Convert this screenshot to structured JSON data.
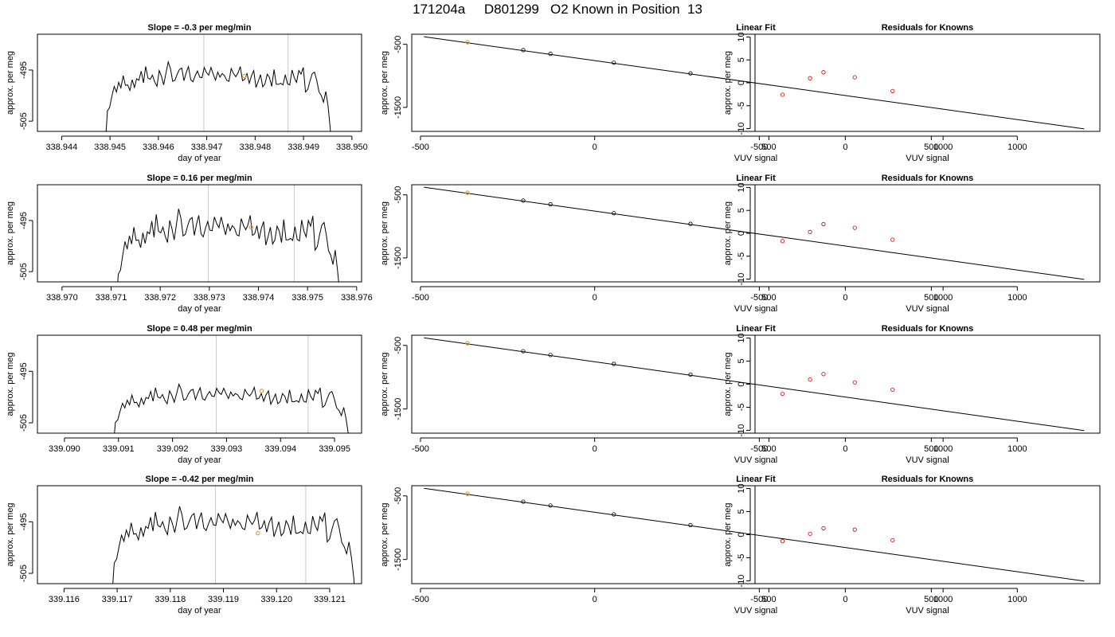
{
  "page": {
    "title": "171204a     D801299   O2 Known in Position  13"
  },
  "colors": {
    "line": "#000000",
    "frame": "#000000",
    "vertical_marker": "#c8c8c8",
    "highlight": "#e8a33d",
    "residual_points": "#cc0000",
    "fit_points": "#000000"
  },
  "chart_data": [
    {
      "type": "line",
      "title": "Slope =  -0.3  per meg/min",
      "xlabel": "day of year",
      "ylabel": "approx. per meg",
      "xlim": [
        338.9435,
        338.9502
      ],
      "ylim": [
        -507.0,
        -488.0
      ],
      "xticks": [
        338.944,
        338.945,
        338.946,
        338.947,
        338.948,
        338.949,
        338.95
      ],
      "xtick_labels": [
        "338.944",
        "338.945",
        "338.946",
        "338.947",
        "338.948",
        "338.949",
        "338.950"
      ],
      "yticks": [
        -495,
        -505
      ],
      "ytick_labels": [
        "-495",
        "-505"
      ],
      "vlines": [
        338.94694,
        338.94868
      ],
      "highlight_point": [
        338.94778,
        -496.2
      ],
      "x_start": 338.9449,
      "x_end": 338.9496,
      "series_values": [
        -510.0,
        -503.0,
        -502.3,
        -500.1,
        -498.2,
        -499.3,
        -497.4,
        -498.5,
        -496.1,
        -498.0,
        -497.9,
        -499.0,
        -496.9,
        -498.4,
        -496.7,
        -497.0,
        -495.2,
        -497.5,
        -494.3,
        -496.6,
        -496.8,
        -496.0,
        -497.3,
        -498.2,
        -495.1,
        -496.2,
        -497.9,
        -495.6,
        -493.4,
        -494.7,
        -497.2,
        -497.0,
        -495.8,
        -494.9,
        -494.6,
        -497.1,
        -495.5,
        -494.3,
        -496.9,
        -497.3,
        -496.1,
        -495.2,
        -496.4,
        -496.5,
        -494.5,
        -495.5,
        -496.0,
        -494.5,
        -495.8,
        -497.0,
        -495.4,
        -496.4,
        -495.7,
        -496.1,
        -497.0,
        -497.2,
        -494.7,
        -495.7,
        -496.3,
        -495.6,
        -494.3,
        -497.1,
        -496.8,
        -495.7,
        -497.6,
        -496.1,
        -495.1,
        -498.4,
        -497.2,
        -495.9,
        -498.3,
        -497.7,
        -495.8,
        -496.5,
        -498.2,
        -494.9,
        -497.8,
        -497.8,
        -497.6,
        -497.9,
        -495.9,
        -497.7,
        -497.9,
        -495.0,
        -496.5,
        -497.4,
        -495.1,
        -495.8,
        -494.5,
        -499.3,
        -498.8,
        -497.1,
        -495.7,
        -495.4,
        -497.1,
        -499.3,
        -500.0,
        -501.3,
        -499.2,
        -502.0,
        -506.5,
        -515.0
      ]
    },
    {
      "type": "line",
      "title": "Slope =  0.16  per meg/min",
      "xlabel": "day of year",
      "ylabel": "approx. per meg",
      "xlim": [
        338.9695,
        338.9761
      ],
      "ylim": [
        -507.0,
        -488.0
      ],
      "xticks": [
        338.97,
        338.971,
        338.972,
        338.973,
        338.974,
        338.975,
        338.976
      ],
      "xtick_labels": [
        "338.970",
        "338.971",
        "338.972",
        "338.973",
        "338.974",
        "338.975",
        "338.976"
      ],
      "yticks": [
        -495,
        -505
      ],
      "ytick_labels": [
        "-495",
        "-505"
      ],
      "vlines": [
        338.97298,
        338.97473
      ],
      "highlight_point": [
        338.97385,
        -496.3
      ],
      "x_start": 338.9711,
      "x_end": 338.9757,
      "series_values": [
        -512.0,
        -505.5,
        -504.7,
        -501.8,
        -499.1,
        -500.6,
        -498.0,
        -499.6,
        -496.3,
        -498.9,
        -498.8,
        -500.3,
        -497.4,
        -499.5,
        -497.2,
        -497.6,
        -495.1,
        -498.3,
        -493.8,
        -497.1,
        -497.4,
        -496.3,
        -498.1,
        -499.3,
        -495.0,
        -496.6,
        -498.8,
        -495.8,
        -492.7,
        -494.5,
        -498.0,
        -497.7,
        -496.1,
        -494.8,
        -494.4,
        -497.9,
        -495.7,
        -494.0,
        -497.6,
        -498.2,
        -496.5,
        -495.2,
        -496.9,
        -497.0,
        -494.3,
        -495.6,
        -496.4,
        -494.3,
        -496.1,
        -497.8,
        -495.6,
        -497.0,
        -496.0,
        -496.5,
        -497.8,
        -498.0,
        -494.6,
        -496.0,
        -496.8,
        -495.8,
        -494.0,
        -497.9,
        -497.6,
        -496.0,
        -498.6,
        -496.5,
        -495.2,
        -499.8,
        -498.1,
        -496.3,
        -499.6,
        -498.8,
        -496.1,
        -497.1,
        -499.3,
        -494.8,
        -498.8,
        -498.8,
        -498.5,
        -498.9,
        -496.2,
        -498.7,
        -499.0,
        -494.9,
        -497.1,
        -498.2,
        -495.0,
        -496.1,
        -494.1,
        -500.8,
        -500.1,
        -497.8,
        -495.9,
        -495.4,
        -497.8,
        -500.9,
        -501.8,
        -503.6,
        -500.8,
        -504.6,
        -509.0,
        -516.0
      ]
    },
    {
      "type": "line",
      "title": "Slope =  0.48  per meg/min",
      "xlabel": "day of year",
      "ylabel": "approx. per meg",
      "xlim": [
        339.0895,
        339.0955
      ],
      "ylim": [
        -507.0,
        -488.0
      ],
      "xticks": [
        339.09,
        339.091,
        339.092,
        339.093,
        339.094,
        339.095
      ],
      "xtick_labels": [
        "339.090",
        "339.091",
        "339.092",
        "339.093",
        "339.094",
        "339.095"
      ],
      "yticks": [
        -495,
        -505
      ],
      "ytick_labels": [
        "-495",
        "-505"
      ],
      "vlines": [
        339.09281,
        339.09451
      ],
      "highlight_point": [
        339.09365,
        -498.8
      ],
      "x_start": 339.0909,
      "x_end": 339.0953,
      "series_values": [
        -510.0,
        -504.9,
        -504.4,
        -502.7,
        -501.2,
        -502.1,
        -500.6,
        -501.5,
        -499.6,
        -501.1,
        -501.0,
        -501.9,
        -500.2,
        -501.4,
        -500.1,
        -500.3,
        -498.9,
        -500.8,
        -498.2,
        -500.0,
        -500.2,
        -499.5,
        -500.6,
        -501.3,
        -498.8,
        -499.7,
        -501.0,
        -499.3,
        -497.5,
        -498.6,
        -500.6,
        -500.4,
        -499.4,
        -498.7,
        -498.5,
        -500.5,
        -499.2,
        -498.2,
        -500.3,
        -500.6,
        -499.6,
        -498.9,
        -499.8,
        -499.9,
        -498.3,
        -499.1,
        -499.5,
        -498.3,
        -499.3,
        -500.3,
        -499.0,
        -499.8,
        -499.3,
        -499.6,
        -500.3,
        -500.5,
        -498.5,
        -499.3,
        -499.8,
        -499.2,
        -498.1,
        -500.4,
        -500.2,
        -499.3,
        -500.8,
        -499.6,
        -498.8,
        -501.4,
        -500.5,
        -499.4,
        -501.3,
        -500.9,
        -499.3,
        -499.9,
        -501.2,
        -498.6,
        -500.9,
        -500.9,
        -500.7,
        -501.0,
        -499.4,
        -500.8,
        -501.0,
        -498.6,
        -499.9,
        -500.6,
        -498.7,
        -499.3,
        -498.2,
        -502.0,
        -501.6,
        -500.3,
        -499.2,
        -498.9,
        -500.3,
        -502.1,
        -502.6,
        -503.6,
        -502.0,
        -504.2,
        -507.3,
        -514.0
      ]
    },
    {
      "type": "line",
      "title": "Slope =  -0.42  per meg/min",
      "xlabel": "day of year",
      "ylabel": "approx. per meg",
      "xlim": [
        339.1155,
        339.1216
      ],
      "ylim": [
        -507.0,
        -488.0
      ],
      "xticks": [
        339.116,
        339.117,
        339.118,
        339.119,
        339.12,
        339.121
      ],
      "xtick_labels": [
        "339.116",
        "339.117",
        "339.118",
        "339.119",
        "339.120",
        "339.121"
      ],
      "yticks": [
        -495,
        -505
      ],
      "ytick_labels": [
        "-495",
        "-505"
      ],
      "vlines": [
        339.11885,
        339.12055
      ],
      "highlight_point": [
        339.11965,
        -497.2
      ],
      "x_start": 339.1169,
      "x_end": 339.1215,
      "series_values": [
        -510.0,
        -503.0,
        -502.2,
        -499.8,
        -497.6,
        -498.8,
        -496.6,
        -497.9,
        -495.2,
        -497.4,
        -497.3,
        -498.5,
        -496.1,
        -497.8,
        -495.9,
        -496.3,
        -494.1,
        -496.8,
        -493.1,
        -495.7,
        -496.0,
        -495.0,
        -496.5,
        -497.5,
        -494.0,
        -495.3,
        -497.1,
        -494.6,
        -492.0,
        -493.6,
        -496.5,
        -496.2,
        -494.9,
        -493.8,
        -493.4,
        -496.4,
        -494.6,
        -493.2,
        -496.2,
        -496.7,
        -495.3,
        -494.2,
        -495.6,
        -495.7,
        -493.4,
        -494.5,
        -495.2,
        -493.4,
        -494.9,
        -496.3,
        -494.5,
        -495.7,
        -494.8,
        -495.3,
        -496.3,
        -496.5,
        -493.7,
        -494.8,
        -495.5,
        -494.7,
        -493.1,
        -496.4,
        -496.1,
        -494.8,
        -497.0,
        -495.2,
        -494.1,
        -497.9,
        -496.5,
        -495.0,
        -497.7,
        -497.1,
        -494.8,
        -495.7,
        -497.5,
        -493.8,
        -497.2,
        -497.2,
        -496.9,
        -497.3,
        -495.0,
        -497.1,
        -497.3,
        -493.9,
        -495.7,
        -496.7,
        -494.0,
        -494.9,
        -493.2,
        -498.9,
        -498.3,
        -496.4,
        -494.8,
        -494.4,
        -496.4,
        -499.0,
        -499.8,
        -501.2,
        -498.9,
        -502.0,
        -506.0,
        -515.0
      ]
    },
    {
      "type": "scatter",
      "title": "Linear Fit",
      "xlabel": "VUV signal",
      "ylabel": "approx. per meg",
      "xlim": [
        -525,
        1450
      ],
      "ylim": [
        -1880,
        -340
      ],
      "xticks": [
        -500,
        0,
        500,
        1000
      ],
      "xtick_labels": [
        "-500",
        "0",
        "500",
        "1000"
      ],
      "yticks": [
        -500,
        -1500
      ],
      "ytick_labels": [
        "-500",
        "-1500"
      ],
      "fit_line": {
        "x": [
          -490,
          1405
        ],
        "y": [
          -380,
          -1840
        ]
      },
      "x": [
        -365,
        -205,
        -127,
        55,
        275
      ],
      "y": [
        -467,
        -591,
        -651,
        -791,
        -960
      ],
      "highlight_point": [
        -365,
        -467
      ]
    },
    {
      "type": "scatter",
      "title": "Linear Fit",
      "xlabel": "VUV signal",
      "ylabel": "approx. per meg",
      "xlim": [
        -525,
        1450
      ],
      "ylim": [
        -1880,
        -340
      ],
      "xticks": [
        -500,
        0,
        500,
        1000
      ],
      "xtick_labels": [
        "-500",
        "0",
        "500",
        "1000"
      ],
      "yticks": [
        -500,
        -1500
      ],
      "ytick_labels": [
        "-500",
        "-1500"
      ],
      "fit_line": {
        "x": [
          -490,
          1405
        ],
        "y": [
          -380,
          -1840
        ]
      },
      "x": [
        -365,
        -205,
        -127,
        55,
        275
      ],
      "y": [
        -467,
        -591,
        -651,
        -791,
        -960
      ],
      "highlight_point": [
        -365,
        -467
      ]
    },
    {
      "type": "scatter",
      "title": "Linear Fit",
      "xlabel": "VUV signal",
      "ylabel": "approx. per meg",
      "xlim": [
        -525,
        1450
      ],
      "ylim": [
        -1880,
        -340
      ],
      "xticks": [
        -500,
        0,
        500,
        1000
      ],
      "xtick_labels": [
        "-500",
        "0",
        "500",
        "1000"
      ],
      "yticks": [
        -500,
        -1500
      ],
      "ytick_labels": [
        "-500",
        "-1500"
      ],
      "fit_line": {
        "x": [
          -490,
          1405
        ],
        "y": [
          -380,
          -1840
        ]
      },
      "x": [
        -365,
        -205,
        -127,
        55,
        275
      ],
      "y": [
        -467,
        -591,
        -651,
        -791,
        -960
      ],
      "highlight_point": [
        -365,
        -467
      ]
    },
    {
      "type": "scatter",
      "title": "Linear Fit",
      "xlabel": "VUV signal",
      "ylabel": "approx. per meg",
      "xlim": [
        -525,
        1450
      ],
      "ylim": [
        -1880,
        -340
      ],
      "xticks": [
        -500,
        0,
        500,
        1000
      ],
      "xtick_labels": [
        "-500",
        "0",
        "500",
        "1000"
      ],
      "yticks": [
        -500,
        -1500
      ],
      "ytick_labels": [
        "-500",
        "-1500"
      ],
      "fit_line": {
        "x": [
          -490,
          1405
        ],
        "y": [
          -380,
          -1840
        ]
      },
      "x": [
        -365,
        -205,
        -127,
        55,
        275
      ],
      "y": [
        -467,
        -591,
        -651,
        -791,
        -960
      ],
      "highlight_point": [
        -365,
        -467
      ]
    },
    {
      "type": "scatter",
      "title": "Residuals for Knowns",
      "xlabel": "VUV signal",
      "ylabel": "approx. per meg",
      "xlim": [
        -525,
        1480
      ],
      "ylim": [
        -10.6,
        10.6
      ],
      "xticks": [
        -500,
        0,
        500,
        1000
      ],
      "xtick_labels": [
        "-500",
        "0",
        "500",
        "1000"
      ],
      "yticks": [
        10,
        5,
        0,
        -5,
        -10
      ],
      "ytick_labels": [
        "10",
        "5",
        "0",
        "-5",
        "-10"
      ],
      "x": [
        -365,
        -205,
        -127,
        55,
        275
      ],
      "y": [
        -2.6,
        1.0,
        2.3,
        1.2,
        -1.8
      ]
    },
    {
      "type": "scatter",
      "title": "Residuals for Knowns",
      "xlabel": "VUV signal",
      "ylabel": "approx. per meg",
      "xlim": [
        -525,
        1480
      ],
      "ylim": [
        -10.6,
        10.6
      ],
      "xticks": [
        -500,
        0,
        500,
        1000
      ],
      "xtick_labels": [
        "-500",
        "0",
        "500",
        "1000"
      ],
      "yticks": [
        10,
        5,
        0,
        -5,
        -10
      ],
      "ytick_labels": [
        "10",
        "5",
        "0",
        "-5",
        "-10"
      ],
      "x": [
        -365,
        -205,
        -127,
        55,
        275
      ],
      "y": [
        -1.7,
        0.3,
        2.0,
        1.2,
        -1.4
      ]
    },
    {
      "type": "scatter",
      "title": "Residuals for Knowns",
      "xlabel": "VUV signal",
      "ylabel": "approx. per meg",
      "xlim": [
        -525,
        1480
      ],
      "ylim": [
        -10.6,
        10.6
      ],
      "xticks": [
        -500,
        0,
        500,
        1000
      ],
      "xtick_labels": [
        "-500",
        "0",
        "500",
        "1000"
      ],
      "yticks": [
        10,
        5,
        0,
        -5,
        -10
      ],
      "ytick_labels": [
        "10",
        "5",
        "0",
        "-5",
        "-10"
      ],
      "x": [
        -365,
        -205,
        -127,
        55,
        275
      ],
      "y": [
        -2.1,
        1.0,
        2.2,
        0.4,
        -1.2
      ]
    },
    {
      "type": "scatter",
      "title": "Residuals for Knowns",
      "xlabel": "VUV signal",
      "ylabel": "approx. per meg",
      "xlim": [
        -525,
        1480
      ],
      "ylim": [
        -10.6,
        10.6
      ],
      "xticks": [
        -500,
        0,
        500,
        1000
      ],
      "xtick_labels": [
        "-500",
        "0",
        "500",
        "1000"
      ],
      "yticks": [
        10,
        5,
        0,
        -5,
        -10
      ],
      "ytick_labels": [
        "10",
        "5",
        "0",
        "-5",
        "-10"
      ],
      "x": [
        -365,
        -205,
        -127,
        55,
        275
      ],
      "y": [
        -1.4,
        0.2,
        1.4,
        1.1,
        -1.2
      ]
    }
  ]
}
